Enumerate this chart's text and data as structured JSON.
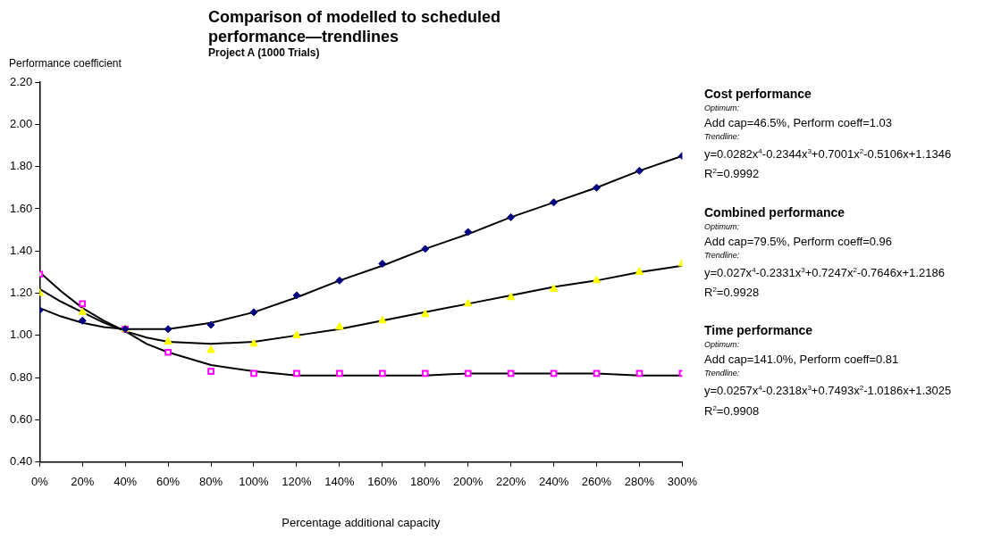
{
  "chart_data": {
    "type": "scatter",
    "title": "Comparison of modelled to scheduled performance—trendlines",
    "subtitle": "Project A  (1000 Trials)",
    "xlabel": "Percentage additional capacity",
    "ylabel": "Performance coefficient",
    "x": [
      0,
      20,
      40,
      60,
      80,
      100,
      120,
      140,
      160,
      180,
      200,
      220,
      240,
      260,
      280,
      300
    ],
    "xlim": [
      0,
      300
    ],
    "xticks": [
      {
        "value": 0,
        "label": "0%"
      },
      {
        "value": 20,
        "label": "20%"
      },
      {
        "value": 40,
        "label": "40%"
      },
      {
        "value": 60,
        "label": "60%"
      },
      {
        "value": 80,
        "label": "80%"
      },
      {
        "value": 100,
        "label": "100%"
      },
      {
        "value": 120,
        "label": "120%"
      },
      {
        "value": 140,
        "label": "140%"
      },
      {
        "value": 160,
        "label": "160%"
      },
      {
        "value": 180,
        "label": "180%"
      },
      {
        "value": 200,
        "label": "200%"
      },
      {
        "value": 220,
        "label": "220%"
      },
      {
        "value": 240,
        "label": "240%"
      },
      {
        "value": 260,
        "label": "260%"
      },
      {
        "value": 280,
        "label": "280%"
      },
      {
        "value": 300,
        "label": "300%"
      }
    ],
    "ylim": [
      0.4,
      2.2
    ],
    "yticks": [
      {
        "value": 0.4,
        "label": "0.40"
      },
      {
        "value": 0.6,
        "label": "0.60"
      },
      {
        "value": 0.8,
        "label": "0.80"
      },
      {
        "value": 1.0,
        "label": "1.00"
      },
      {
        "value": 1.2,
        "label": "1.20"
      },
      {
        "value": 1.4,
        "label": "1.40"
      },
      {
        "value": 1.6,
        "label": "1.60"
      },
      {
        "value": 1.8,
        "label": "1.80"
      },
      {
        "value": 2.0,
        "label": "2.00"
      },
      {
        "value": 2.2,
        "label": "2.20"
      }
    ],
    "grid": false,
    "legend": false,
    "series": [
      {
        "type": "scatter",
        "marker": "diamond",
        "color": "#000080",
        "values": [
          1.12,
          1.07,
          1.03,
          1.03,
          1.05,
          1.11,
          1.19,
          1.26,
          1.34,
          1.41,
          1.49,
          1.56,
          1.63,
          1.7,
          1.78,
          1.85
        ]
      },
      {
        "type": "scatter",
        "marker": "triangle",
        "color": "#ffff00",
        "values": [
          1.2,
          1.11,
          1.03,
          0.97,
          0.93,
          0.96,
          1.0,
          1.04,
          1.07,
          1.1,
          1.15,
          1.18,
          1.22,
          1.26,
          1.3,
          1.34
        ]
      },
      {
        "type": "scatter",
        "marker": "square",
        "color": "#ff00ff",
        "values": [
          1.29,
          1.15,
          1.03,
          0.92,
          0.83,
          0.82,
          0.82,
          0.82,
          0.82,
          0.82,
          0.82,
          0.82,
          0.82,
          0.82,
          0.82,
          0.82
        ]
      },
      {
        "type": "line",
        "marker": "none",
        "line_style": "solid",
        "color": "#000000",
        "x": [
          0,
          10,
          20,
          30,
          40,
          50,
          60,
          80,
          100,
          120,
          140,
          160,
          180,
          200,
          220,
          240,
          260,
          280,
          300
        ],
        "values": [
          1.13,
          1.09,
          1.06,
          1.04,
          1.03,
          1.03,
          1.03,
          1.06,
          1.11,
          1.18,
          1.26,
          1.33,
          1.41,
          1.48,
          1.56,
          1.63,
          1.7,
          1.78,
          1.85
        ]
      },
      {
        "type": "line",
        "marker": "none",
        "line_style": "solid",
        "color": "#000000",
        "x": [
          0,
          10,
          20,
          30,
          40,
          50,
          60,
          80,
          100,
          120,
          140,
          160,
          180,
          200,
          220,
          240,
          260,
          280,
          300
        ],
        "values": [
          1.22,
          1.16,
          1.11,
          1.06,
          1.02,
          0.99,
          0.97,
          0.96,
          0.97,
          1.0,
          1.03,
          1.07,
          1.11,
          1.15,
          1.19,
          1.23,
          1.26,
          1.3,
          1.33
        ]
      },
      {
        "type": "line",
        "marker": "none",
        "line_style": "solid",
        "color": "#000000",
        "x": [
          0,
          10,
          20,
          30,
          40,
          50,
          60,
          80,
          100,
          120,
          140,
          160,
          180,
          200,
          220,
          240,
          260,
          280,
          300
        ],
        "values": [
          1.3,
          1.21,
          1.13,
          1.07,
          1.02,
          0.96,
          0.92,
          0.86,
          0.83,
          0.81,
          0.81,
          0.81,
          0.81,
          0.82,
          0.82,
          0.82,
          0.82,
          0.81,
          0.81
        ]
      }
    ],
    "annotations": [
      "Cost performance",
      "Optimum:",
      "Add cap=46.5%, Perform coeff=1.03",
      "Trendline:",
      "y=0.0282x$^{4}$-0.2344x$^{3}$+0.7001x$^{2}$-0.5106x+1.1346",
      "R$^{2}$=0.9992",
      "Combined performance",
      "Optimum:",
      "Add cap=79.5%, Perform coeff=0.96",
      "Trendline:",
      "y=0.027x$^{4}$-0.2331x$^{3}$+0.7247x$^{2}$-0.7646x+1.2186",
      "R$^{2}$=0.9928",
      "Time performance",
      "Optimum:",
      "Add cap=141.0%, Perform coeff=0.81",
      "Trendline:",
      "y=0.0257x$^{4}$-0.2318x$^{3}$+0.7493x$^{2}$-1.0186x+1.3025",
      "R$^{2}$=0.9908"
    ]
  }
}
